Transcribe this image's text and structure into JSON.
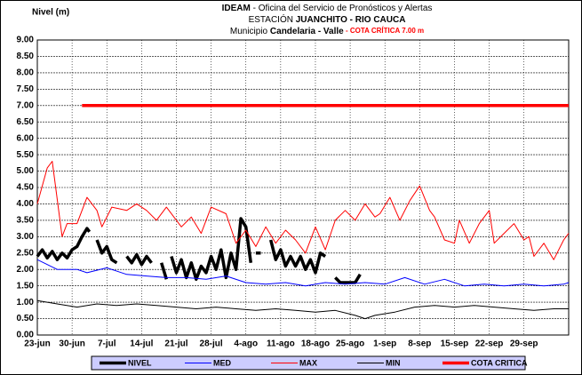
{
  "chart_data": {
    "type": "line",
    "title": {
      "line1": [
        "IDEAM",
        " - Oficina del Servicio de Pronósticos y Alertas"
      ],
      "line2": [
        "ESTACIÓN ",
        "JUANCHITO - RIO CAUCA"
      ],
      "line3": [
        "Municipio ",
        "Candelaria - Valle",
        " - COTA CRÍTICA 7.00 m"
      ]
    },
    "y_label": "Nivel (m)",
    "xlim": [
      0,
      107
    ],
    "xticks": [
      {
        "value": 0,
        "label": "23-jun"
      },
      {
        "value": 7,
        "label": "30-jun"
      },
      {
        "value": 14,
        "label": "7-jul"
      },
      {
        "value": 21,
        "label": "14-jul"
      },
      {
        "value": 28,
        "label": "21-jul"
      },
      {
        "value": 35,
        "label": "28-jul"
      },
      {
        "value": 42,
        "label": "4-ago"
      },
      {
        "value": 49,
        "label": "11-ago"
      },
      {
        "value": 56,
        "label": "18-ago"
      },
      {
        "value": 63,
        "label": "25-ago"
      },
      {
        "value": 70,
        "label": "1-sep"
      },
      {
        "value": 77,
        "label": "8-sep"
      },
      {
        "value": 84,
        "label": "15-sep"
      },
      {
        "value": 91,
        "label": "22-sep"
      },
      {
        "value": 98,
        "label": "29-sep"
      }
    ],
    "ylim": [
      0,
      9
    ],
    "yticks": [
      {
        "value": 0,
        "label": "0.00"
      },
      {
        "value": 0.5,
        "label": "0.50"
      },
      {
        "value": 1,
        "label": "1.00"
      },
      {
        "value": 1.5,
        "label": "1.50"
      },
      {
        "value": 2,
        "label": "2.00"
      },
      {
        "value": 2.5,
        "label": "2.50"
      },
      {
        "value": 3,
        "label": "3.00"
      },
      {
        "value": 3.5,
        "label": "3.50"
      },
      {
        "value": 4,
        "label": "4.00"
      },
      {
        "value": 4.5,
        "label": "4.50"
      },
      {
        "value": 5,
        "label": "5.00"
      },
      {
        "value": 5.5,
        "label": "5.50"
      },
      {
        "value": 6,
        "label": "6.00"
      },
      {
        "value": 6.5,
        "label": "6.50"
      },
      {
        "value": 7,
        "label": "7.00"
      },
      {
        "value": 7.5,
        "label": "7.50"
      },
      {
        "value": 8,
        "label": "8.00"
      },
      {
        "value": 8.5,
        "label": "8.50"
      },
      {
        "value": 9,
        "label": "9.00"
      }
    ],
    "grid": true,
    "legend": "bottom",
    "series": [
      {
        "name": "NIVEL",
        "color": "#000000",
        "width": 3.5,
        "x": [
          0,
          1,
          2,
          3,
          4,
          5,
          6,
          7,
          8,
          9,
          10,
          10.5,
          11,
          12,
          13,
          14,
          15,
          16,
          17,
          18,
          19,
          20,
          21,
          22,
          23,
          24,
          25,
          26,
          26.5,
          27,
          28,
          29,
          30,
          31,
          32,
          33,
          34,
          35,
          36,
          37,
          38,
          39,
          40,
          41,
          42,
          43,
          43.5,
          44,
          45,
          46,
          47,
          48,
          49,
          50,
          51,
          52,
          53,
          54,
          55,
          56,
          57,
          58,
          59,
          60,
          61,
          62,
          63,
          64,
          65
        ],
        "values": [
          2.4,
          2.6,
          2.35,
          2.55,
          2.3,
          2.5,
          2.35,
          2.6,
          2.7,
          3.0,
          3.25,
          3.15,
          null,
          2.9,
          2.5,
          2.7,
          2.3,
          2.2,
          null,
          2.4,
          2.2,
          2.45,
          2.15,
          2.4,
          2.2,
          null,
          2.2,
          1.7,
          null,
          2.4,
          1.9,
          2.3,
          1.75,
          2.2,
          1.7,
          2.1,
          1.9,
          2.4,
          2.0,
          2.6,
          1.75,
          2.5,
          2.0,
          3.55,
          3.3,
          2.2,
          null,
          2.5,
          2.5,
          null,
          2.9,
          2.3,
          2.6,
          2.1,
          2.4,
          2.1,
          2.4,
          2.0,
          2.3,
          1.9,
          2.5,
          2.4,
          null,
          1.75,
          1.6,
          1.6,
          1.6,
          1.6,
          1.85
        ]
      },
      {
        "name": "MED",
        "color": "#0000ff",
        "width": 1,
        "x": [
          0,
          4,
          8,
          10,
          14,
          18,
          22,
          26,
          30,
          34,
          38,
          42,
          46,
          50,
          54,
          58,
          62,
          66,
          70,
          74,
          78,
          82,
          86,
          90,
          94,
          98,
          102,
          106,
          107
        ],
        "values": [
          2.3,
          2.0,
          2.0,
          1.9,
          2.05,
          1.85,
          1.8,
          1.75,
          1.75,
          1.7,
          1.8,
          1.6,
          1.55,
          1.6,
          1.5,
          1.6,
          1.55,
          1.6,
          1.55,
          1.75,
          1.55,
          1.7,
          1.5,
          1.55,
          1.5,
          1.55,
          1.5,
          1.55,
          1.6
        ]
      },
      {
        "name": "MAX",
        "color": "#ff0000",
        "width": 1,
        "x": [
          0,
          2,
          3,
          5,
          6,
          8,
          10,
          12,
          13,
          15,
          18,
          20,
          22,
          24,
          26,
          29,
          31,
          33,
          35,
          38,
          40,
          42,
          44,
          46,
          48,
          50,
          52,
          54,
          56,
          58,
          60,
          62,
          64,
          66,
          68,
          69,
          71,
          73,
          75,
          77,
          79,
          80,
          82,
          84,
          85,
          87,
          89,
          91,
          92,
          94,
          96,
          98,
          99,
          100,
          102,
          104,
          106,
          107
        ],
        "values": [
          4.0,
          5.1,
          5.3,
          3.0,
          3.4,
          3.4,
          4.2,
          3.8,
          3.3,
          3.9,
          3.8,
          4.0,
          3.8,
          3.5,
          3.9,
          3.3,
          3.6,
          3.1,
          3.9,
          3.7,
          2.8,
          3.2,
          2.7,
          3.3,
          2.8,
          3.2,
          2.9,
          2.5,
          3.3,
          2.6,
          3.5,
          3.8,
          3.5,
          4.0,
          3.6,
          3.7,
          4.2,
          3.5,
          4.1,
          4.55,
          3.8,
          3.6,
          2.9,
          2.8,
          3.5,
          2.8,
          3.4,
          3.8,
          2.8,
          3.1,
          3.4,
          2.9,
          3.0,
          2.4,
          2.8,
          2.3,
          2.9,
          3.1
        ]
      },
      {
        "name": "MIN",
        "color": "#000000",
        "width": 1,
        "x": [
          0,
          4,
          8,
          12,
          16,
          20,
          24,
          28,
          32,
          36,
          40,
          44,
          48,
          52,
          56,
          60,
          64,
          66,
          68,
          72,
          76,
          80,
          84,
          88,
          92,
          96,
          100,
          104,
          107
        ],
        "values": [
          1.05,
          0.95,
          0.85,
          0.95,
          0.9,
          0.95,
          0.9,
          0.85,
          0.8,
          0.85,
          0.8,
          0.75,
          0.8,
          0.75,
          0.7,
          0.75,
          0.6,
          0.5,
          0.6,
          0.7,
          0.85,
          0.9,
          0.85,
          0.9,
          0.85,
          0.8,
          0.75,
          0.8,
          0.8
        ]
      },
      {
        "name": "COTA CRITICA",
        "color": "#ff0000",
        "width": 3.5,
        "x": [
          9,
          107
        ],
        "values": [
          7,
          7
        ]
      }
    ]
  }
}
